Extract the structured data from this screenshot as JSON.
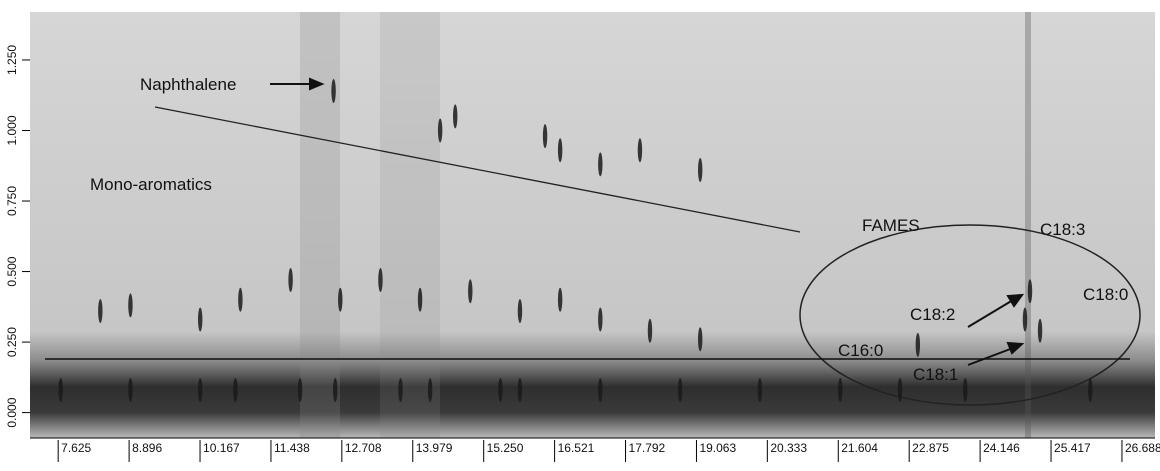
{
  "chart_data": {
    "type": "scatter",
    "annotations": [
      "Naphthalene",
      "Mono-aromatics",
      "FAMES",
      "C18:3",
      "C18:2",
      "C18:0",
      "C16:0",
      "C18:1"
    ],
    "x": [
      12.56,
      14.74,
      14.47,
      16.35,
      16.62,
      17.34,
      18.05,
      19.13,
      8.38,
      8.92,
      10.17,
      10.89,
      11.79,
      12.68,
      13.4,
      14.11,
      15.01,
      15.9,
      16.62,
      17.34,
      18.23,
      19.13,
      25.04,
      24.95,
      25.22,
      23.03,
      7.67,
      8.92,
      10.17,
      10.8,
      11.96,
      12.59,
      13.76,
      14.29,
      15.55,
      15.9,
      17.34,
      18.77,
      20.2,
      21.64,
      22.71,
      23.88,
      26.12
    ],
    "y": [
      1.14,
      1.05,
      1.0,
      0.98,
      0.93,
      0.88,
      0.93,
      0.86,
      0.36,
      0.38,
      0.33,
      0.4,
      0.47,
      0.4,
      0.47,
      0.4,
      0.43,
      0.36,
      0.4,
      0.33,
      0.29,
      0.26,
      0.43,
      0.33,
      0.29,
      0.24,
      0.08,
      0.08,
      0.08,
      0.08,
      0.08,
      0.08,
      0.08,
      0.08,
      0.08,
      0.08,
      0.08,
      0.08,
      0.08,
      0.08,
      0.08,
      0.08,
      0.08
    ],
    "color": "#1a1a1a",
    "hline": 0.19,
    "xlim": [
      7.12,
      27.28
    ],
    "ylim": [
      -0.09,
      1.42
    ],
    "xticks": [
      7.625,
      8.896,
      10.167,
      11.438,
      12.708,
      13.979,
      {
        "value": 15.25,
        "label": "15.250"
      },
      16.521,
      17.792,
      19.063,
      20.333,
      21.604,
      22.875,
      24.146,
      25.417,
      26.688
    ],
    "yticks": [
      {
        "value": 0,
        "label": "0.000"
      },
      {
        "value": 0.25,
        "label": "0.250"
      },
      {
        "value": 0.5,
        "label": "0.500"
      },
      {
        "value": 0.75,
        "label": "0.750"
      },
      {
        "value": 1,
        "label": "1.000"
      },
      {
        "value": 1.25,
        "label": "1.250"
      }
    ]
  }
}
